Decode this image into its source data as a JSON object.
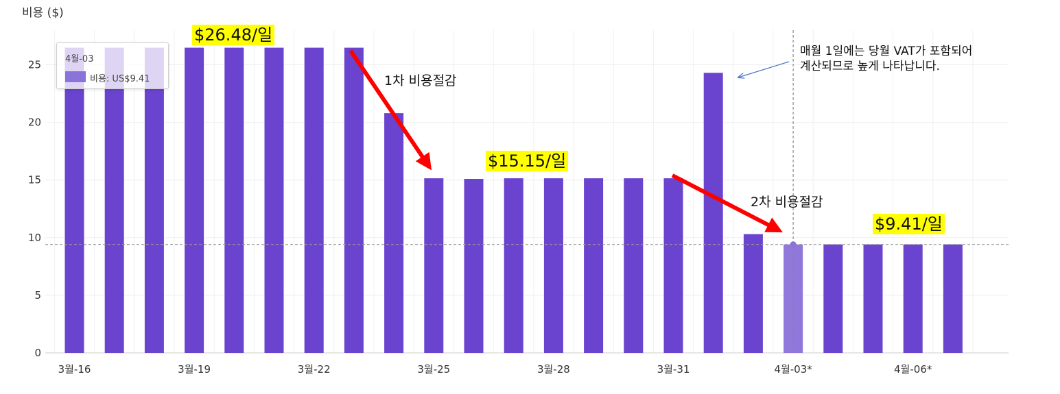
{
  "chart_data": {
    "type": "bar",
    "ylabel": "비용 ($)",
    "ylim": [
      0,
      27
    ],
    "yticks": [
      0,
      5,
      10,
      15,
      20,
      25
    ],
    "grid": true,
    "categories": [
      "3월-16",
      "3월-17",
      "3월-18",
      "3월-19",
      "3월-20",
      "3월-21",
      "3월-22",
      "3월-23",
      "3월-24",
      "3월-25",
      "3월-26",
      "3월-27",
      "3월-28",
      "3월-29",
      "3월-30",
      "3월-31",
      "4월-01",
      "4월-02",
      "4월-03",
      "4월-04",
      "4월-05",
      "4월-06",
      "4월-07"
    ],
    "x_tick_labels": [
      "3월-16",
      "3월-19",
      "3월-22",
      "3월-25",
      "3월-28",
      "3월-31",
      "4월-03*",
      "4월-06*"
    ],
    "series": [
      {
        "name": "비용",
        "values": [
          26.48,
          26.48,
          26.48,
          26.48,
          26.48,
          26.48,
          26.48,
          26.48,
          20.8,
          15.15,
          15.1,
          15.15,
          15.15,
          15.15,
          15.15,
          15.15,
          24.3,
          10.3,
          9.41,
          9.41,
          9.41,
          9.41,
          9.41
        ]
      }
    ],
    "bar_color": "#6a43cf",
    "highlight_color": "#9077dc",
    "highlighted_category": "4월-03",
    "reference_line": 9.41,
    "tooltip": {
      "date": "4월-03",
      "label": "비용: US$9.41"
    },
    "annotations": {
      "rate_1": "$26.48/일",
      "rate_2": "$15.15/일",
      "rate_3": "$9.41/일",
      "cut_1": "1차 비용절감",
      "cut_2": "2차 비용절감",
      "note_line1": "매월 1일에는 당월 VAT가 포함되어",
      "note_line2": "계산되므로 높게 나타납니다."
    }
  }
}
